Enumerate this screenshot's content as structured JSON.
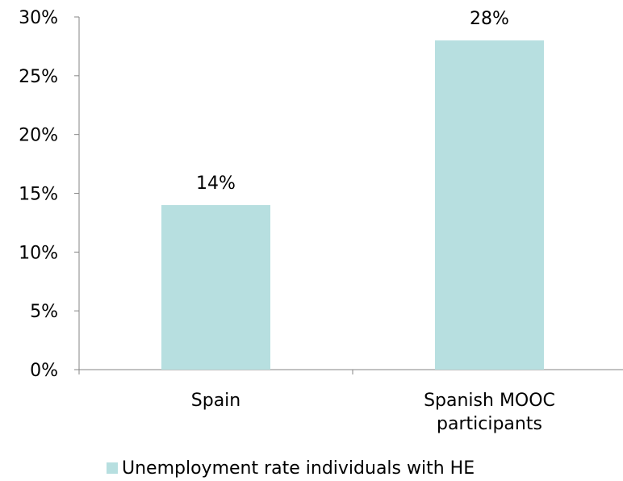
{
  "chart_data": {
    "type": "bar",
    "categories": [
      "Spain",
      "Spanish MOOC participants"
    ],
    "category_label_lines": [
      [
        "Spain"
      ],
      [
        "Spanish MOOC",
        "participants"
      ]
    ],
    "series": [
      {
        "name": "Unemployment rate individuals with HE",
        "values": [
          0.14,
          0.28
        ],
        "data_labels": [
          "14%",
          "28%"
        ],
        "color": "#b7dfe0"
      }
    ],
    "ylim": [
      0,
      0.3
    ],
    "yticks": [
      0,
      0.05,
      0.1,
      0.15,
      0.2,
      0.25,
      0.3
    ],
    "ytick_labels": [
      "0%",
      "5%",
      "10%",
      "15%",
      "20%",
      "25%",
      "30%"
    ],
    "title": "",
    "xlabel": "",
    "ylabel": "",
    "grid": false,
    "legend_position": "bottom",
    "axis_color": "#868686"
  }
}
